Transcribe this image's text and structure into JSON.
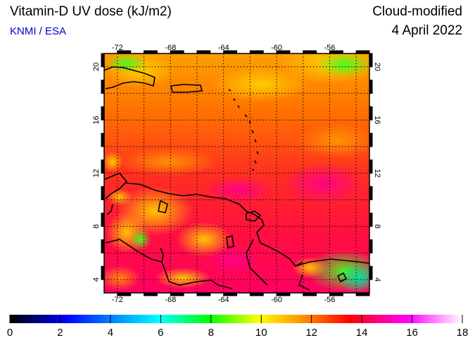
{
  "header": {
    "title": "Vitamin-D UV dose (kJ/m2)",
    "source": "KNMI / ESA",
    "product": "Cloud-modified",
    "date": "4 April 2022"
  },
  "map": {
    "lon_range": [
      -73,
      -53
    ],
    "lat_range": [
      3,
      21
    ],
    "lon_ticks": [
      -72,
      -68,
      -64,
      -60,
      -56
    ],
    "lat_ticks": [
      4,
      8,
      12,
      16,
      20
    ],
    "lon_tick_labels": [
      "-72",
      "-68",
      "-64",
      "-60",
      "-56"
    ],
    "lat_tick_labels": [
      "4",
      "8",
      "12",
      "16",
      "20"
    ],
    "grid": "dotted, every 2 degrees"
  },
  "colorbar": {
    "min": 0,
    "max": 18,
    "tick_labels": [
      "0",
      "2",
      "4",
      "6",
      "8",
      "10",
      "12",
      "14",
      "16",
      "18"
    ],
    "stops": [
      "#000000",
      "#0000ff",
      "#00ffff",
      "#00ff00",
      "#ffff00",
      "#ff8000",
      "#ff0000",
      "#ff00ff",
      "#ffffff"
    ]
  }
}
